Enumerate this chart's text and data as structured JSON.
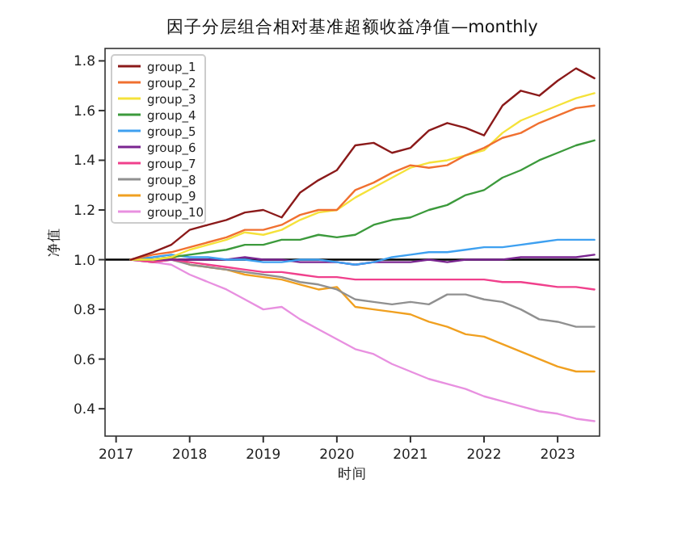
{
  "chart_data": {
    "type": "line",
    "title": "因子分层组合相对基准超额收益净值—monthly",
    "xlabel": "时间",
    "ylabel": "净值",
    "x": [
      2017.2,
      2017.5,
      2017.75,
      2018.0,
      2018.25,
      2018.5,
      2018.75,
      2019.0,
      2019.25,
      2019.5,
      2019.75,
      2020.0,
      2020.25,
      2020.5,
      2020.75,
      2021.0,
      2021.25,
      2021.5,
      2021.75,
      2022.0,
      2022.25,
      2022.5,
      2022.75,
      2023.0,
      2023.25,
      2023.5
    ],
    "series": [
      {
        "name": "group_1",
        "color": "#8b1a1a",
        "values": [
          1.0,
          1.03,
          1.06,
          1.12,
          1.14,
          1.16,
          1.19,
          1.2,
          1.17,
          1.27,
          1.32,
          1.36,
          1.46,
          1.47,
          1.43,
          1.45,
          1.52,
          1.55,
          1.53,
          1.5,
          1.62,
          1.68,
          1.66,
          1.72,
          1.77,
          1.73
        ]
      },
      {
        "name": "group_2",
        "color": "#f07030",
        "values": [
          1.0,
          1.02,
          1.03,
          1.05,
          1.07,
          1.09,
          1.12,
          1.12,
          1.14,
          1.18,
          1.2,
          1.2,
          1.28,
          1.31,
          1.35,
          1.38,
          1.37,
          1.38,
          1.42,
          1.45,
          1.49,
          1.51,
          1.55,
          1.58,
          1.61,
          1.62
        ]
      },
      {
        "name": "group_3",
        "color": "#f5e23a",
        "values": [
          1.0,
          1.0,
          1.01,
          1.04,
          1.06,
          1.08,
          1.11,
          1.1,
          1.12,
          1.16,
          1.19,
          1.2,
          1.25,
          1.29,
          1.33,
          1.37,
          1.39,
          1.4,
          1.42,
          1.44,
          1.51,
          1.56,
          1.59,
          1.62,
          1.65,
          1.67
        ]
      },
      {
        "name": "group_4",
        "color": "#3c9a3c",
        "values": [
          1.0,
          1.0,
          1.01,
          1.02,
          1.03,
          1.04,
          1.06,
          1.06,
          1.08,
          1.08,
          1.1,
          1.09,
          1.1,
          1.14,
          1.16,
          1.17,
          1.2,
          1.22,
          1.26,
          1.28,
          1.33,
          1.36,
          1.4,
          1.43,
          1.46,
          1.48
        ]
      },
      {
        "name": "group_5",
        "color": "#3ea0f0",
        "values": [
          1.0,
          1.01,
          1.02,
          1.01,
          1.01,
          1.0,
          1.0,
          0.99,
          0.99,
          1.0,
          1.0,
          0.99,
          0.98,
          0.99,
          1.01,
          1.02,
          1.03,
          1.03,
          1.04,
          1.05,
          1.05,
          1.06,
          1.07,
          1.08,
          1.08,
          1.08
        ]
      },
      {
        "name": "group_6",
        "color": "#7a2590",
        "values": [
          1.0,
          1.0,
          1.0,
          1.0,
          1.0,
          1.0,
          1.01,
          1.0,
          1.0,
          0.99,
          0.99,
          0.99,
          0.98,
          0.99,
          0.99,
          0.99,
          1.0,
          0.99,
          1.0,
          1.0,
          1.0,
          1.01,
          1.01,
          1.01,
          1.01,
          1.02
        ]
      },
      {
        "name": "group_7",
        "color": "#f0408c",
        "values": [
          1.0,
          0.99,
          1.0,
          0.99,
          0.98,
          0.97,
          0.96,
          0.95,
          0.95,
          0.94,
          0.93,
          0.93,
          0.92,
          0.92,
          0.92,
          0.92,
          0.92,
          0.92,
          0.92,
          0.92,
          0.91,
          0.91,
          0.9,
          0.89,
          0.89,
          0.88
        ]
      },
      {
        "name": "group_8",
        "color": "#909090",
        "values": [
          1.0,
          0.99,
          1.0,
          0.98,
          0.97,
          0.96,
          0.95,
          0.94,
          0.93,
          0.91,
          0.9,
          0.88,
          0.84,
          0.83,
          0.82,
          0.83,
          0.82,
          0.86,
          0.86,
          0.84,
          0.83,
          0.8,
          0.76,
          0.75,
          0.73,
          0.73
        ]
      },
      {
        "name": "group_9",
        "color": "#f0a020",
        "values": [
          1.0,
          1.0,
          1.01,
          0.98,
          0.97,
          0.96,
          0.94,
          0.93,
          0.92,
          0.9,
          0.88,
          0.89,
          0.81,
          0.8,
          0.79,
          0.78,
          0.75,
          0.73,
          0.7,
          0.69,
          0.66,
          0.63,
          0.6,
          0.57,
          0.55,
          0.55
        ]
      },
      {
        "name": "group_10",
        "color": "#e890e0",
        "values": [
          1.0,
          0.99,
          0.98,
          0.94,
          0.91,
          0.88,
          0.84,
          0.8,
          0.81,
          0.76,
          0.72,
          0.68,
          0.64,
          0.62,
          0.58,
          0.55,
          0.52,
          0.5,
          0.48,
          0.45,
          0.43,
          0.41,
          0.39,
          0.38,
          0.36,
          0.35
        ]
      }
    ],
    "ref_lines": [
      {
        "axis": "y",
        "value": 1,
        "color": "#000000"
      }
    ],
    "xlim": [
      2016.85,
      2023.57
    ],
    "ylim": [
      0.29,
      1.85
    ],
    "xticks": [
      2017,
      2018,
      2019,
      2020,
      2021,
      2022,
      2023
    ],
    "yticks": [
      0.4,
      0.6,
      0.8,
      {
        "value": 1,
        "label": "1.0"
      },
      1.2,
      1.4,
      1.6,
      1.8
    ],
    "grid": false,
    "legend": "top left",
    "marker": "none",
    "line_style": "solid"
  }
}
